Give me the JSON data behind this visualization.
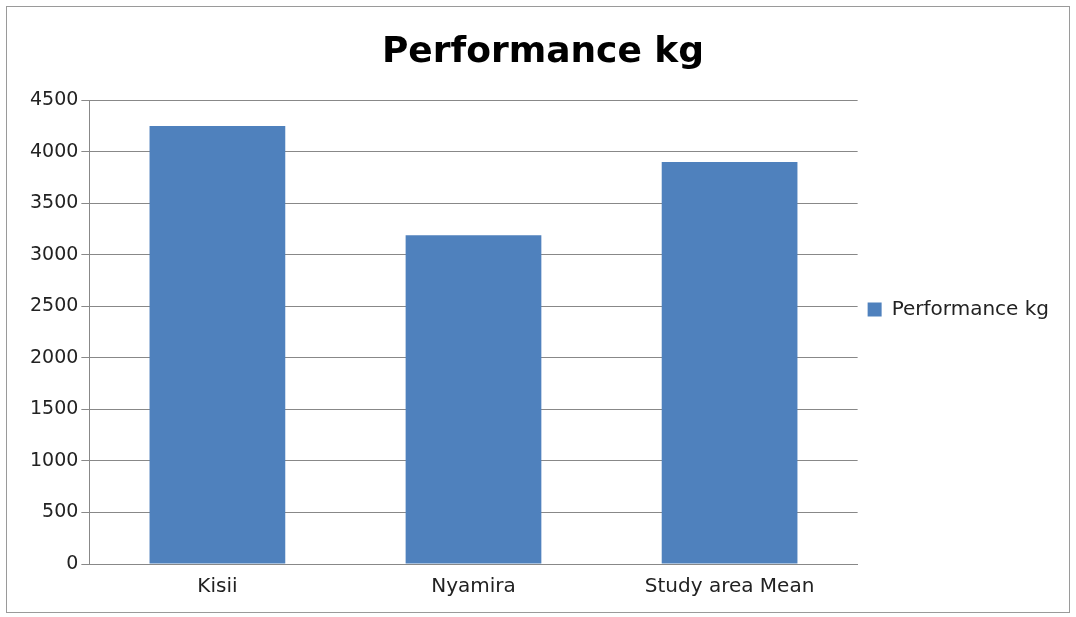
{
  "chart_data": {
    "type": "bar",
    "title": "Performance kg",
    "categories": [
      "Kisii",
      "Nyamira",
      "Study area Mean"
    ],
    "series": [
      {
        "name": "Performance kg",
        "color": "#4f81bd",
        "values": [
          4250,
          3190,
          3900
        ]
      }
    ],
    "ylim": [
      0,
      4500
    ],
    "yticks": [
      0,
      500,
      1000,
      1500,
      2000,
      2500,
      3000,
      3500,
      4000,
      4500
    ],
    "grid": "y",
    "legend": "right"
  }
}
